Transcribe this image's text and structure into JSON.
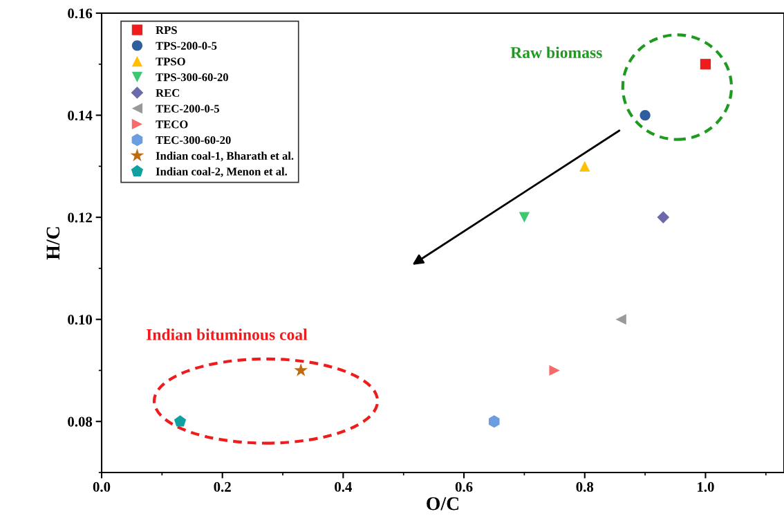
{
  "chart_data": {
    "type": "scatter",
    "xlabel": "O/C",
    "ylabel": "H/C",
    "xlim": [
      0,
      1.13
    ],
    "ylim": [
      0.07,
      0.16
    ],
    "xticks": [
      {
        "value": 0,
        "label": "0.0"
      },
      0.2,
      0.4,
      0.6,
      0.8,
      {
        "value": 1,
        "label": "1.0"
      }
    ],
    "yticks": [
      0.08,
      {
        "value": 0.1,
        "label": "0.10"
      },
      0.12,
      0.14,
      0.16
    ],
    "grid": false,
    "legend": "top left",
    "series": [
      {
        "name": "RPS",
        "color": "#ee1c1c",
        "marker": "square",
        "x": [
          1.0
        ],
        "values": [
          0.15
        ]
      },
      {
        "name": "TPS-200-0-5",
        "color": "#2e5e9e",
        "marker": "circle",
        "x": [
          0.9
        ],
        "values": [
          0.14
        ]
      },
      {
        "name": "TPSO",
        "color": "#ffc000",
        "marker": "triangle",
        "x": [
          0.8
        ],
        "values": [
          0.13
        ]
      },
      {
        "name": "TPS-300-60-20",
        "color": "#3cc86e",
        "marker": "triangle-down",
        "x": [
          0.7
        ],
        "values": [
          0.12
        ]
      },
      {
        "name": "REC",
        "color": "#6a6aaa",
        "marker": "diamond",
        "x": [
          0.93
        ],
        "values": [
          0.12
        ]
      },
      {
        "name": "TEC-200-0-5",
        "color": "#999999",
        "marker": "triangle-left",
        "x": [
          0.86
        ],
        "values": [
          0.1
        ]
      },
      {
        "name": "TECO",
        "color": "#f86a6a",
        "marker": "triangle-right",
        "x": [
          0.75
        ],
        "values": [
          0.09
        ]
      },
      {
        "name": "TEC-300-60-20",
        "color": "#6a9ee0",
        "x": [
          0.65
        ],
        "values": [
          0.08
        ]
      },
      {
        "name": "Indian coal-1, Bharath et al.",
        "color": "#c06a10",
        "marker": "star",
        "x": [
          0.33
        ],
        "values": [
          0.09
        ]
      },
      {
        "name": "Indian coal-2, Menon et al.",
        "color": "#10a0a0",
        "x": [
          0.13
        ],
        "values": [
          0.08
        ]
      }
    ],
    "annotations": [
      "Raw biomass",
      "Indian bituminous coal"
    ]
  }
}
